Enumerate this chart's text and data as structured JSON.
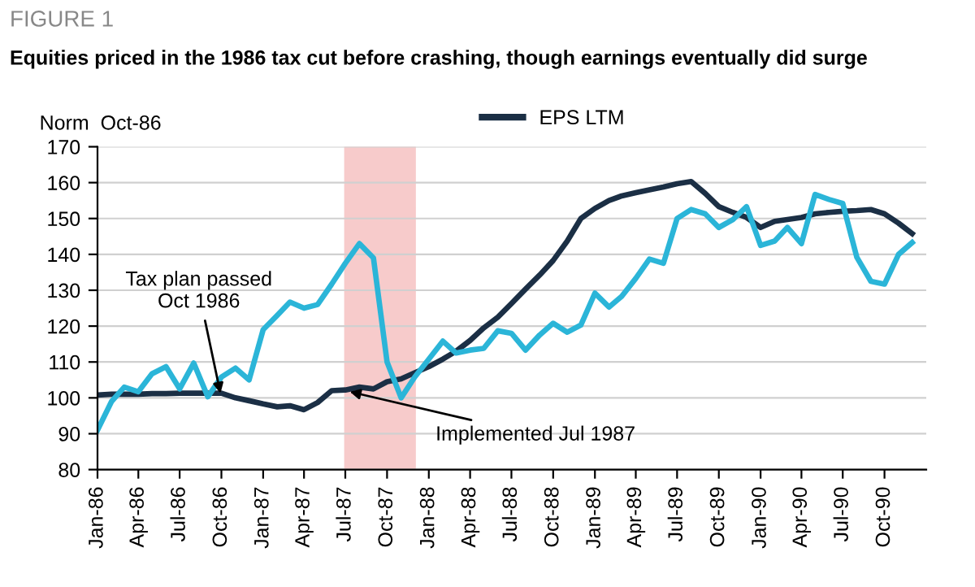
{
  "chart_data": {
    "type": "line",
    "title": "FIGURE 1",
    "subtitle": "Equities priced in the 1986 tax cut before crashing, though earnings eventually did surge",
    "ylabel": "Norm  Oct-86",
    "x": [
      "1986-01",
      "1986-02",
      "1986-03",
      "1986-04",
      "1986-05",
      "1986-06",
      "1986-07",
      "1986-08",
      "1986-09",
      "1986-10",
      "1986-11",
      "1986-12",
      "1987-01",
      "1987-02",
      "1987-03",
      "1987-04",
      "1987-05",
      "1987-06",
      "1987-07",
      "1987-08",
      "1987-09",
      "1987-10",
      "1987-11",
      "1987-12",
      "1988-01",
      "1988-02",
      "1988-03",
      "1988-04",
      "1988-05",
      "1988-06",
      "1988-07",
      "1988-08",
      "1988-09",
      "1988-10",
      "1988-11",
      "1988-12",
      "1989-01",
      "1989-02",
      "1989-03",
      "1989-04",
      "1989-05",
      "1989-06",
      "1989-07",
      "1989-08",
      "1989-09",
      "1989-10",
      "1989-11",
      "1989-12",
      "1990-01",
      "1990-02",
      "1990-03",
      "1990-04",
      "1990-05",
      "1990-06",
      "1990-07",
      "1990-08",
      "1990-09",
      "1990-10",
      "1990-11",
      "1990-12"
    ],
    "series": [
      {
        "name": "EPS LTM",
        "color": "#1b2f45",
        "values": [
          100.8,
          101,
          101,
          101,
          101.2,
          101.2,
          101.3,
          101.3,
          101.3,
          101.3,
          100,
          99.2,
          98.3,
          97.5,
          97.8,
          96.7,
          98.7,
          102,
          102.2,
          103,
          102.5,
          104.5,
          105.3,
          107,
          108.7,
          110.8,
          113,
          116,
          119.5,
          122.5,
          126.3,
          130.3,
          134.2,
          138.3,
          143.7,
          150,
          152.8,
          155,
          156.3,
          157.2,
          158,
          158.8,
          159.7,
          160.3,
          157,
          153.3,
          151.7,
          150.3,
          147.5,
          149.2,
          149.7,
          150.3,
          151.3,
          151.7,
          152,
          152.2,
          152.5,
          151.3,
          148.7,
          145.8
        ]
      },
      {
        "color": "#2bb5d8",
        "values": [
          91,
          99,
          103,
          101.7,
          106.7,
          108.7,
          102.5,
          109.7,
          100.3,
          105.8,
          108.3,
          105,
          119,
          123,
          126.7,
          125,
          126,
          131.7,
          137.5,
          143,
          139,
          110,
          100,
          105.8,
          110.8,
          115.8,
          112.5,
          113.3,
          113.8,
          118.7,
          118,
          113.3,
          117.5,
          120.8,
          118.3,
          120.3,
          129.2,
          125.3,
          128.3,
          133.3,
          138.7,
          137.5,
          150,
          152.5,
          151.3,
          147.5,
          149.7,
          153.3,
          142.5,
          143.7,
          147.5,
          143,
          156.7,
          155.3,
          154.2,
          139.2,
          132.5,
          131.7,
          140,
          143.3
        ]
      }
    ],
    "xlim": [
      "1986-01",
      "1991-01"
    ],
    "xticks": [
      {
        "value": "1986-01",
        "label": "Jan-86"
      },
      {
        "value": "1986-04",
        "label": "Apr-86"
      },
      {
        "value": "1986-07",
        "label": "Jul-86"
      },
      {
        "value": "1986-10",
        "label": "Oct-86"
      },
      {
        "value": "1987-01",
        "label": "Jan-87"
      },
      {
        "value": "1987-04",
        "label": "Apr-87"
      },
      {
        "value": "1987-07",
        "label": "Jul-87"
      },
      {
        "value": "1987-10",
        "label": "Oct-87"
      },
      {
        "value": "1988-01",
        "label": "Jan-88"
      },
      {
        "value": "1988-04",
        "label": "Apr-88"
      },
      {
        "value": "1988-07",
        "label": "Jul-88"
      },
      {
        "value": "1988-10",
        "label": "Oct-88"
      },
      {
        "value": "1989-01",
        "label": "Jan-89"
      },
      {
        "value": "1989-04",
        "label": "Apr-89"
      },
      {
        "value": "1989-07",
        "label": "Jul-89"
      },
      {
        "value": "1989-10",
        "label": "Oct-89"
      },
      {
        "value": "1990-01",
        "label": "Jan-90"
      },
      {
        "value": "1990-04",
        "label": "Apr-90"
      },
      {
        "value": "1990-07",
        "label": "Jul-90"
      },
      {
        "value": "1990-10",
        "label": "Oct-90"
      }
    ],
    "ylim": [
      80,
      170
    ],
    "yticks": [
      80,
      90,
      100,
      110,
      120,
      130,
      140,
      150,
      160,
      170
    ],
    "grid": "y",
    "legend": "top",
    "line_style": "solid",
    "bands": [
      {
        "axis": "x",
        "from": "1987-07",
        "to": "1987-12",
        "color": "#f4b6b6"
      }
    ],
    "annotations": [
      {
        "text": "Tax plan passed\nOct 1986",
        "x": "1986-10",
        "y": 100
      },
      {
        "text": "Implemented Jul 1987",
        "x": "1987-07",
        "y": 102
      }
    ]
  }
}
